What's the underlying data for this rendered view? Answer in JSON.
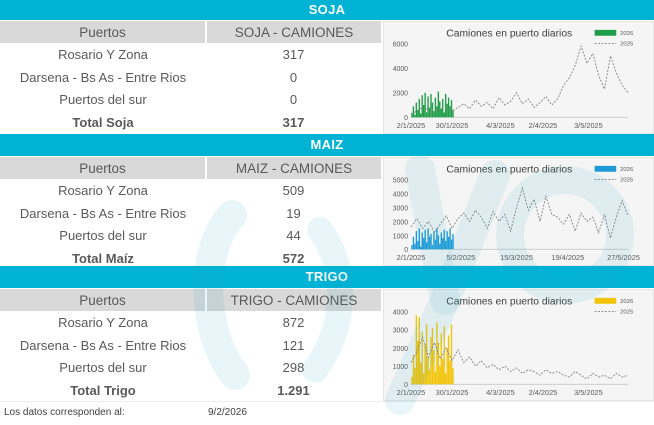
{
  "footer": {
    "label": "Los datos corresponden al:",
    "date": "9/2/2026"
  },
  "sections": [
    {
      "id": "soja",
      "title": "SOJA",
      "col_puertos": "Puertos",
      "col_camiones": "SOJA - CAMIONES",
      "rows": [
        {
          "puerto": "Rosario Y Zona",
          "camiones": "317"
        },
        {
          "puerto": "Darsena - Bs As - Entre Rios",
          "camiones": "0"
        },
        {
          "puerto": "Puertos del sur",
          "camiones": "0"
        }
      ],
      "total": {
        "label": "Total Soja",
        "camiones": "317"
      }
    },
    {
      "id": "maiz",
      "title": "MAIZ",
      "col_puertos": "Puertos",
      "col_camiones": "MAIZ - CAMIONES",
      "rows": [
        {
          "puerto": "Rosario Y Zona",
          "camiones": "509"
        },
        {
          "puerto": "Darsena - Bs As - Entre Rios",
          "camiones": "19"
        },
        {
          "puerto": "Puertos del sur",
          "camiones": "44"
        }
      ],
      "total": {
        "label": "Total Maíz",
        "camiones": "572"
      }
    },
    {
      "id": "trigo",
      "title": "TRIGO",
      "col_puertos": "Puertos",
      "col_camiones": "TRIGO - CAMIONES",
      "rows": [
        {
          "puerto": "Rosario Y Zona",
          "camiones": "872"
        },
        {
          "puerto": "Darsena - Bs As - Entre Rios",
          "camiones": "121"
        },
        {
          "puerto": "Puertos del sur",
          "camiones": "298"
        }
      ],
      "total": {
        "label": "Total Trigo",
        "camiones": "1.291"
      }
    }
  ],
  "chart_data": [
    {
      "type": "bar",
      "title": "Camiones en puerto diarios",
      "legend_position": "top-right",
      "ylim": [
        0,
        6000
      ],
      "yticks": [
        "0",
        "2000",
        "4000",
        "6000"
      ],
      "xticks": [
        "2/1/2025",
        "30/1/2025",
        "4/3/2025",
        "2/4/2025",
        "3/5/2025"
      ],
      "x_range": [
        0,
        148
      ],
      "xtick_pos": [
        0,
        28,
        61,
        90,
        121
      ],
      "series": [
        {
          "name": "2026",
          "kind": "bar",
          "color": "#1e9e48",
          "x": [
            0,
            1,
            2,
            3,
            4,
            5,
            6,
            7,
            8,
            9,
            10,
            11,
            12,
            13,
            14,
            15,
            16,
            17,
            18,
            19,
            20,
            21,
            22,
            23,
            24,
            25,
            26,
            27,
            28
          ],
          "values": [
            300,
            900,
            200,
            1200,
            600,
            1500,
            300,
            1800,
            1000,
            2000,
            400,
            1700,
            800,
            1900,
            1200,
            500,
            1600,
            900,
            2100,
            1300,
            700,
            1500,
            400,
            1900,
            1100,
            1600,
            900,
            1400,
            600
          ]
        },
        {
          "name": "2025",
          "kind": "line",
          "color": "#808080",
          "x": [
            0,
            4,
            8,
            12,
            16,
            20,
            24,
            28,
            32,
            36,
            40,
            44,
            48,
            52,
            56,
            60,
            64,
            68,
            72,
            76,
            80,
            84,
            88,
            92,
            96,
            100,
            104,
            108,
            112,
            116,
            120,
            124,
            128,
            132,
            136,
            140,
            144,
            148
          ],
          "values": [
            300,
            500,
            800,
            600,
            400,
            700,
            900,
            500,
            800,
            1100,
            700,
            1400,
            900,
            1200,
            700,
            1600,
            1000,
            1300,
            2000,
            1100,
            1500,
            800,
            1200,
            1700,
            1000,
            1500,
            2600,
            3200,
            4200,
            5800,
            4400,
            5200,
            3400,
            2300,
            5000,
            3600,
            2600,
            2000
          ]
        }
      ]
    },
    {
      "type": "bar",
      "title": "Camiones en puerto diarios",
      "legend_position": "top-right",
      "ylim": [
        0,
        5000
      ],
      "yticks": [
        "0",
        "1000",
        "2000",
        "3000",
        "4000",
        "5000"
      ],
      "xticks": [
        "2/1/2025",
        "5/2/2025",
        "15/3/2025",
        "19/4/2025",
        "27/5/2025"
      ],
      "x_range": [
        0,
        148
      ],
      "xtick_pos": [
        0,
        34,
        72,
        107,
        145
      ],
      "series": [
        {
          "name": "2026",
          "kind": "bar",
          "color": "#1e9bd7",
          "x": [
            0,
            1,
            2,
            3,
            4,
            5,
            6,
            7,
            8,
            9,
            10,
            11,
            12,
            13,
            14,
            15,
            16,
            17,
            18,
            19,
            20,
            21,
            22,
            23,
            24,
            25,
            26,
            27,
            28
          ],
          "values": [
            300,
            900,
            400,
            1300,
            600,
            1500,
            200,
            1200,
            800,
            1400,
            500,
            1500,
            900,
            1100,
            300,
            1300,
            700,
            1500,
            1000,
            400,
            1200,
            800,
            1400,
            600,
            1300,
            900,
            1500,
            700,
            1100
          ]
        },
        {
          "name": "2025",
          "kind": "line",
          "color": "#808080",
          "x": [
            0,
            4,
            8,
            12,
            16,
            20,
            24,
            28,
            32,
            36,
            40,
            44,
            48,
            52,
            56,
            60,
            64,
            68,
            72,
            76,
            80,
            84,
            88,
            92,
            96,
            100,
            104,
            108,
            112,
            116,
            120,
            124,
            128,
            132,
            136,
            140,
            144,
            148
          ],
          "values": [
            1600,
            2200,
            1500,
            2000,
            1200,
            1800,
            2400,
            1500,
            2200,
            2600,
            2000,
            2800,
            2300,
            1500,
            2700,
            2000,
            2500,
            1300,
            3000,
            4400,
            2800,
            3600,
            2000,
            3800,
            2500,
            2300,
            1800,
            2500,
            1300,
            2600,
            2000,
            2300,
            1200,
            2500,
            800,
            2300,
            3500,
            2400
          ]
        }
      ]
    },
    {
      "type": "bar",
      "title": "Camiones en puerto diarios",
      "legend_position": "top-right",
      "ylim": [
        0,
        4000
      ],
      "yticks": [
        "0",
        "1000",
        "2000",
        "3000",
        "4000"
      ],
      "xticks": [
        "2/1/2025",
        "30/1/2025",
        "4/3/2025",
        "2/4/2025",
        "3/5/2025"
      ],
      "x_range": [
        0,
        148
      ],
      "xtick_pos": [
        0,
        28,
        61,
        90,
        121
      ],
      "series": [
        {
          "name": "2026",
          "kind": "bar",
          "color": "#f2c50b",
          "x": [
            0,
            1,
            2,
            3,
            4,
            5,
            6,
            7,
            8,
            9,
            10,
            11,
            12,
            13,
            14,
            15,
            16,
            17,
            18,
            19,
            20,
            21,
            22,
            23,
            24,
            25,
            26,
            27,
            28
          ],
          "values": [
            400,
            1600,
            900,
            3800,
            2400,
            3700,
            1200,
            2900,
            600,
            2200,
            3300,
            1500,
            800,
            2600,
            3100,
            1900,
            700,
            3400,
            2300,
            1000,
            2800,
            1400,
            3200,
            600,
            2000,
            2700,
            1300,
            3300,
            900
          ]
        },
        {
          "name": "2025",
          "kind": "line",
          "color": "#808080",
          "x": [
            0,
            4,
            8,
            12,
            16,
            20,
            24,
            28,
            32,
            36,
            40,
            44,
            48,
            52,
            56,
            60,
            64,
            68,
            72,
            76,
            80,
            84,
            88,
            92,
            96,
            100,
            104,
            108,
            112,
            116,
            120,
            124,
            128,
            132,
            136,
            140,
            144,
            148
          ],
          "values": [
            1200,
            1800,
            2600,
            1500,
            2300,
            1400,
            2000,
            1300,
            1900,
            1200,
            1500,
            1000,
            1300,
            900,
            1100,
            800,
            1000,
            700,
            900,
            600,
            800,
            700,
            500,
            800,
            600,
            700,
            500,
            400,
            700,
            500,
            300,
            600,
            400,
            500,
            300,
            600,
            400,
            500
          ]
        }
      ]
    }
  ]
}
